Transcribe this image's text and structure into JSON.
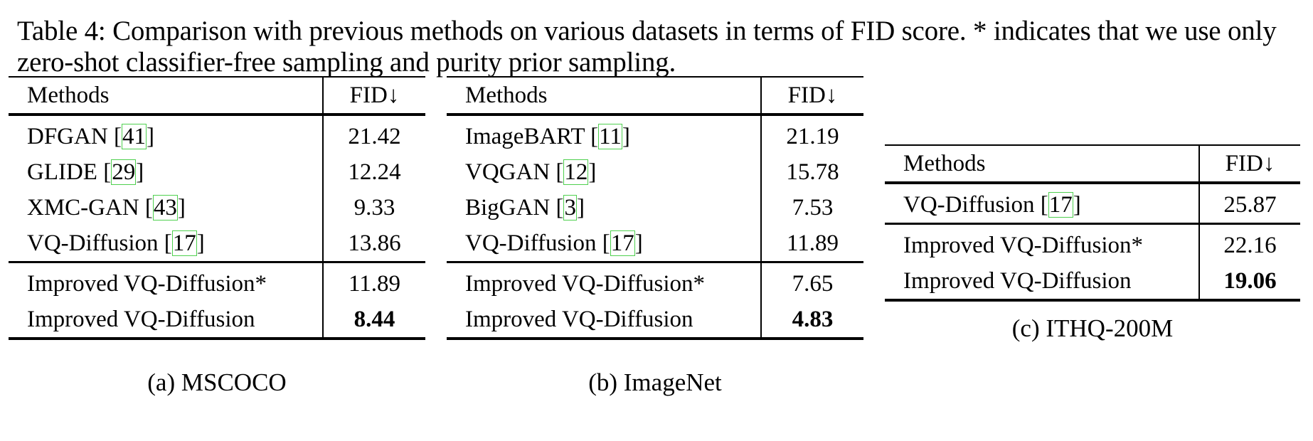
{
  "caption": "Table 4: Comparison with previous methods on various datasets in terms of FID score. * indicates that we use only zero-shot classifier-free sampling and purity prior sampling.",
  "tables": {
    "a": {
      "col_method": "Methods",
      "col_fid": "FID↓",
      "rows": [
        {
          "name": "DFGAN",
          "ref": "41",
          "fid": "21.42"
        },
        {
          "name": "GLIDE",
          "ref": "29",
          "fid": "12.24"
        },
        {
          "name": "XMC-GAN",
          "ref": "43",
          "fid": "9.33"
        },
        {
          "name": "VQ-Diffusion",
          "ref": "17",
          "fid": "13.86"
        },
        {
          "name": "Improved VQ-Diffusion*",
          "fid": "11.89"
        },
        {
          "name": "Improved VQ-Diffusion",
          "fid": "8.44"
        }
      ],
      "subcaption": "(a) MSCOCO"
    },
    "b": {
      "col_method": "Methods",
      "col_fid": "FID↓",
      "rows": [
        {
          "name": "ImageBART",
          "ref": "11",
          "fid": "21.19"
        },
        {
          "name": "VQGAN",
          "ref": "12",
          "fid": "15.78"
        },
        {
          "name": "BigGAN",
          "ref": "3",
          "fid": "7.53"
        },
        {
          "name": "VQ-Diffusion",
          "ref": "17",
          "fid": "11.89"
        },
        {
          "name": "Improved VQ-Diffusion*",
          "fid": "7.65"
        },
        {
          "name": "Improved VQ-Diffusion",
          "fid": "4.83"
        }
      ],
      "subcaption": "(b) ImageNet"
    },
    "c": {
      "col_method": "Methods",
      "col_fid": "FID↓",
      "rows": [
        {
          "name": "VQ-Diffusion",
          "ref": "17",
          "fid": "25.87"
        },
        {
          "name": "Improved VQ-Diffusion*",
          "fid": "22.16"
        },
        {
          "name": "Improved VQ-Diffusion",
          "fid": "19.06"
        }
      ],
      "subcaption": "(c) ITHQ-200M"
    }
  }
}
